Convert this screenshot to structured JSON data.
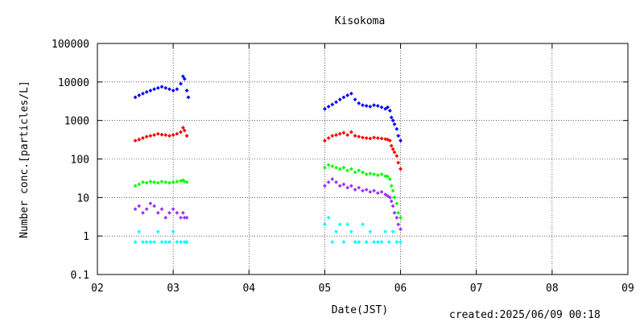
{
  "chart_data": {
    "type": "scatter",
    "title": "Kisokoma",
    "xlabel": "Date(JST)",
    "ylabel": "Number conc.[particles/L]",
    "yscale": "log",
    "xlim": [
      "02",
      "09"
    ],
    "ylim": [
      0.1,
      100000
    ],
    "x_ticks": [
      "02",
      "03",
      "04",
      "05",
      "06",
      "07",
      "08",
      "09"
    ],
    "y_ticks": [
      "0.1",
      "1",
      "10",
      "100",
      "1000",
      "10000",
      "100000"
    ],
    "grid": true,
    "legend": "none",
    "series": [
      {
        "color": "#0000ff",
        "x": [
          2.5,
          2.55,
          2.6,
          2.65,
          2.7,
          2.75,
          2.8,
          2.85,
          2.9,
          2.95,
          3.0,
          3.05,
          3.1,
          3.13,
          3.15,
          3.18,
          3.2,
          5.0,
          5.05,
          5.1,
          5.15,
          5.2,
          5.25,
          5.3,
          5.35,
          5.4,
          5.45,
          5.5,
          5.55,
          5.6,
          5.65,
          5.7,
          5.75,
          5.8,
          5.83,
          5.86,
          5.88,
          5.9,
          5.92,
          5.95,
          5.97,
          6.0
        ],
        "y": [
          4000,
          4500,
          5000,
          5500,
          6000,
          6500,
          7000,
          7500,
          7000,
          6500,
          6000,
          6500,
          9000,
          14000,
          12000,
          6000,
          4000,
          2000,
          2300,
          2600,
          3000,
          3500,
          4000,
          4500,
          5000,
          3500,
          2800,
          2500,
          2400,
          2300,
          2500,
          2400,
          2200,
          2000,
          2200,
          1800,
          1200,
          1000,
          800,
          600,
          400,
          300
        ]
      },
      {
        "color": "#ff0000",
        "x": [
          2.5,
          2.55,
          2.6,
          2.65,
          2.7,
          2.75,
          2.8,
          2.85,
          2.9,
          2.95,
          3.0,
          3.05,
          3.1,
          3.13,
          3.15,
          3.18,
          5.0,
          5.05,
          5.1,
          5.15,
          5.2,
          5.25,
          5.3,
          5.35,
          5.4,
          5.45,
          5.5,
          5.55,
          5.6,
          5.65,
          5.7,
          5.75,
          5.8,
          5.83,
          5.86,
          5.88,
          5.9,
          5.92,
          5.95,
          5.97,
          6.0
        ],
        "y": [
          300,
          320,
          350,
          380,
          400,
          420,
          450,
          430,
          420,
          400,
          420,
          450,
          500,
          650,
          550,
          400,
          300,
          350,
          400,
          420,
          450,
          480,
          420,
          500,
          400,
          380,
          360,
          350,
          340,
          360,
          350,
          340,
          330,
          320,
          300,
          220,
          180,
          150,
          120,
          80,
          55
        ]
      },
      {
        "color": "#00ff00",
        "x": [
          2.5,
          2.55,
          2.6,
          2.65,
          2.7,
          2.75,
          2.8,
          2.85,
          2.9,
          2.95,
          3.0,
          3.05,
          3.1,
          3.13,
          3.15,
          3.18,
          5.0,
          5.05,
          5.1,
          5.15,
          5.2,
          5.25,
          5.3,
          5.35,
          5.4,
          5.45,
          5.5,
          5.55,
          5.6,
          5.65,
          5.7,
          5.75,
          5.8,
          5.83,
          5.86,
          5.88,
          5.9,
          5.92,
          5.95,
          5.97,
          6.0
        ],
        "y": [
          20,
          22,
          25,
          24,
          26,
          25,
          24,
          26,
          25,
          24,
          25,
          26,
          27,
          28,
          26,
          25,
          60,
          70,
          65,
          60,
          55,
          60,
          50,
          55,
          45,
          50,
          45,
          40,
          42,
          40,
          38,
          40,
          36,
          35,
          30,
          20,
          15,
          10,
          7,
          4,
          3
        ]
      },
      {
        "color": "#9933ff",
        "x": [
          2.5,
          2.55,
          2.6,
          2.65,
          2.7,
          2.75,
          2.8,
          2.85,
          2.9,
          2.95,
          3.0,
          3.05,
          3.1,
          3.13,
          3.15,
          3.18,
          5.0,
          5.05,
          5.1,
          5.15,
          5.2,
          5.25,
          5.3,
          5.35,
          5.4,
          5.45,
          5.5,
          5.55,
          5.6,
          5.65,
          5.7,
          5.75,
          5.8,
          5.83,
          5.86,
          5.88,
          5.9,
          5.92,
          5.95,
          5.97,
          6.0
        ],
        "y": [
          5,
          6,
          4,
          5,
          7,
          6,
          4,
          5,
          3,
          4,
          5,
          4,
          3,
          4,
          3,
          3,
          20,
          25,
          30,
          25,
          20,
          22,
          18,
          20,
          16,
          18,
          15,
          16,
          14,
          15,
          13,
          14,
          12,
          11,
          10,
          8,
          6,
          4,
          3,
          2,
          1.5
        ]
      },
      {
        "color": "#00ffff",
        "x": [
          2.5,
          2.55,
          2.6,
          2.65,
          2.7,
          2.75,
          2.8,
          2.85,
          2.9,
          2.95,
          3.0,
          3.05,
          3.1,
          3.15,
          3.18,
          5.0,
          5.05,
          5.1,
          5.15,
          5.2,
          5.25,
          5.3,
          5.35,
          5.4,
          5.45,
          5.5,
          5.55,
          5.6,
          5.65,
          5.7,
          5.75,
          5.8,
          5.85,
          5.9,
          5.95,
          6.0
        ],
        "y": [
          0.7,
          1.3,
          0.7,
          0.7,
          0.7,
          0.7,
          1.3,
          0.7,
          0.7,
          0.7,
          1.3,
          0.7,
          0.7,
          0.7,
          0.7,
          2,
          3,
          0.7,
          1.3,
          2,
          0.7,
          2,
          1.3,
          0.7,
          0.7,
          2,
          0.7,
          1.3,
          0.7,
          0.7,
          0.7,
          1.3,
          0.7,
          1.3,
          0.7,
          0.7
        ]
      }
    ]
  },
  "footer": {
    "created": "created:2025/06/09 00:18"
  }
}
